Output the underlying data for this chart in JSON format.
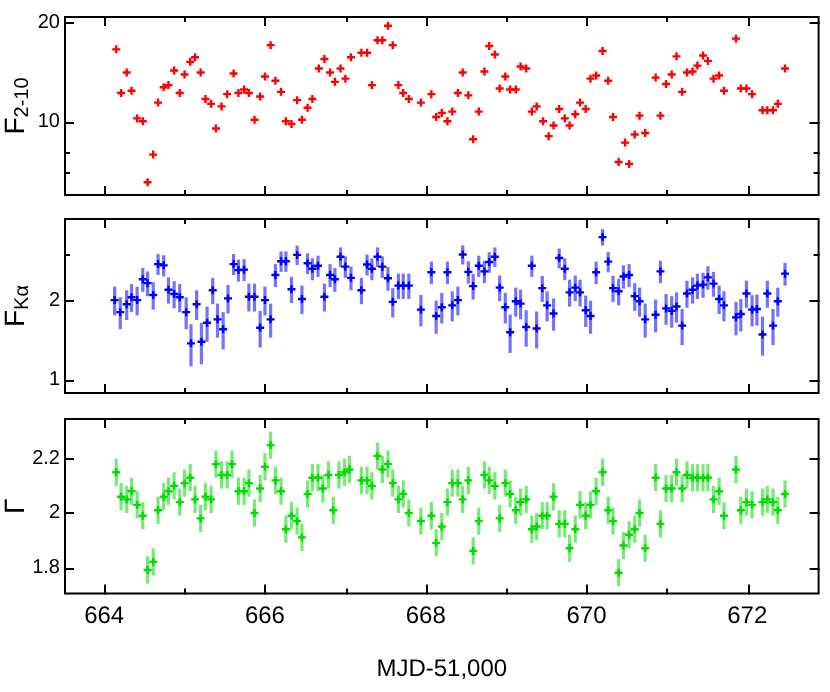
{
  "chart_data": [
    {
      "type": "scatter",
      "ylabel": "F$_{2-10}$",
      "log": true,
      "marker": "cross",
      "tick_labels": "y",
      "color": "#ff0000",
      "xlim": [
        663.5,
        672.9
      ],
      "xticks": [
        664,
        {
          "value": 665,
          "label": null
        },
        666,
        {
          "value": 667,
          "label": null
        },
        668,
        {
          "value": 669,
          "label": null
        },
        670,
        {
          "value": 671,
          "label": null
        },
        672
      ],
      "ylim": [
        5.9,
        21
      ],
      "yticks": [
        {
          "value": 7,
          "label": null
        },
        {
          "value": 8,
          "label": null
        },
        10,
        20
      ],
      "x": [
        664.15,
        664.21,
        664.28,
        664.34,
        664.41,
        664.48,
        664.54,
        664.61,
        664.67,
        664.74,
        664.8,
        664.87,
        664.94,
        665.0,
        665.07,
        665.13,
        665.2,
        665.26,
        665.33,
        665.39,
        665.46,
        665.53,
        665.61,
        665.67,
        665.74,
        665.8,
        665.87,
        665.94,
        666.0,
        666.07,
        666.13,
        666.2,
        666.26,
        666.33,
        666.4,
        666.46,
        666.53,
        666.59,
        666.67,
        666.74,
        666.81,
        666.87,
        666.94,
        667.0,
        667.07,
        667.2,
        667.27,
        667.33,
        667.4,
        667.46,
        667.53,
        667.59,
        667.66,
        667.72,
        667.79,
        667.94,
        668.07,
        668.13,
        668.2,
        668.27,
        668.33,
        668.4,
        668.46,
        668.53,
        668.59,
        668.66,
        668.73,
        668.79,
        668.86,
        668.92,
        668.99,
        669.05,
        669.12,
        669.18,
        669.25,
        669.32,
        669.38,
        669.46,
        669.53,
        669.59,
        669.66,
        669.73,
        669.79,
        669.86,
        669.92,
        669.99,
        670.05,
        670.12,
        670.2,
        670.27,
        670.33,
        670.4,
        670.48,
        670.53,
        670.6,
        670.66,
        670.73,
        670.86,
        670.92,
        670.99,
        671.06,
        671.12,
        671.19,
        671.25,
        671.32,
        671.38,
        671.45,
        671.51,
        671.58,
        671.65,
        671.71,
        671.86,
        671.92,
        671.99,
        672.06,
        672.19,
        672.25,
        672.32,
        672.38,
        672.47
      ],
      "values": [
        16.6,
        12.2,
        14.1,
        12.4,
        10.2,
        10.0,
        6.5,
        7.9,
        11.4,
        12.7,
        12.9,
        14.3,
        12.2,
        13.9,
        15.2,
        15.7,
        14.1,
        11.7,
        11.3,
        9.5,
        11.1,
        12.1,
        14.0,
        12.2,
        12.5,
        12.2,
        10.1,
        11.9,
        13.7,
        17.1,
        13.3,
        12.3,
        10.0,
        9.8,
        11.6,
        10.1,
        11.0,
        11.7,
        14.5,
        15.5,
        14.1,
        13.2,
        14.5,
        13.5,
        15.7,
        16.2,
        16.2,
        12.9,
        17.7,
        17.7,
        19.6,
        17.1,
        12.9,
        12.2,
        11.7,
        11.4,
        12.1,
        10.3,
        10.6,
        10.0,
        10.7,
        12.2,
        14.1,
        12.0,
        8.8,
        10.7,
        14.2,
        17.0,
        16.0,
        12.6,
        13.7,
        12.5,
        12.5,
        14.7,
        14.5,
        10.7,
        11.1,
        10.0,
        9.0,
        9.7,
        10.9,
        10.2,
        9.7,
        10.5,
        11.4,
        10.9,
        13.5,
        13.8,
        16.4,
        13.3,
        10.3,
        7.5,
        8.6,
        7.4,
        9.1,
        10.4,
        9.2,
        13.6,
        10.4,
        13.0,
        13.9,
        15.8,
        12.3,
        14.1,
        14.2,
        14.8,
        15.9,
        15.3,
        13.5,
        13.8,
        12.4,
        17.9,
        12.6,
        12.6,
        12.1,
        10.8,
        10.8,
        10.8,
        11.3,
        14.5
      ]
    },
    {
      "type": "scatter",
      "ylabel": "F$_{Kα}$",
      "log": true,
      "marker": "cross",
      "tick_labels": "y",
      "color": "#0000ff",
      "xlim": [
        663.5,
        672.9
      ],
      "xticks": [
        664,
        {
          "value": 665,
          "label": null
        },
        666,
        {
          "value": 667,
          "label": null
        },
        668,
        {
          "value": 669,
          "label": null
        },
        670,
        {
          "value": 671,
          "label": null
        },
        672
      ],
      "ylim": [
        0.88,
        4.1
      ],
      "yticks": [
        1,
        2,
        {
          "value": 3,
          "label": null
        }
      ],
      "x": [
        664.13,
        664.2,
        664.28,
        664.34,
        664.41,
        664.48,
        664.54,
        664.61,
        664.67,
        664.74,
        664.8,
        664.87,
        664.94,
        665.02,
        665.08,
        665.15,
        665.21,
        665.28,
        665.35,
        665.41,
        665.48,
        665.54,
        665.61,
        665.67,
        665.74,
        665.8,
        665.87,
        665.94,
        666.0,
        666.07,
        666.13,
        666.2,
        666.26,
        666.33,
        666.4,
        666.46,
        666.53,
        666.59,
        666.66,
        666.74,
        666.81,
        666.87,
        666.94,
        667.0,
        667.07,
        667.2,
        667.27,
        667.33,
        667.4,
        667.46,
        667.53,
        667.59,
        667.66,
        667.72,
        667.79,
        667.94,
        668.07,
        668.13,
        668.2,
        668.27,
        668.33,
        668.4,
        668.46,
        668.53,
        668.59,
        668.66,
        668.73,
        668.79,
        668.86,
        668.92,
        668.99,
        669.05,
        669.12,
        669.18,
        669.25,
        669.32,
        669.38,
        669.45,
        669.51,
        669.59,
        669.66,
        669.73,
        669.79,
        669.86,
        669.92,
        669.99,
        670.05,
        670.12,
        670.2,
        670.27,
        670.33,
        670.4,
        670.46,
        670.53,
        670.6,
        670.66,
        670.73,
        670.86,
        670.92,
        670.99,
        671.06,
        671.12,
        671.19,
        671.25,
        671.32,
        671.38,
        671.45,
        671.51,
        671.58,
        671.65,
        671.71,
        671.86,
        671.92,
        671.99,
        672.06,
        672.12,
        672.19,
        672.25,
        672.32,
        672.38,
        672.47
      ],
      "values": [
        2.0,
        1.8,
        1.93,
        2.05,
        2.0,
        2.4,
        2.32,
        2.09,
        2.74,
        2.71,
        2.19,
        2.11,
        2.05,
        1.8,
        1.37,
        1.93,
        1.39,
        1.64,
        2.18,
        1.69,
        1.55,
        2.03,
        2.74,
        2.6,
        2.61,
        2.06,
        2.06,
        1.57,
        2.0,
        1.69,
        2.49,
        2.81,
        2.81,
        2.2,
        2.97,
        2.02,
        2.76,
        2.63,
        2.7,
        2.06,
        2.49,
        2.4,
        2.92,
        2.68,
        2.43,
        2.18,
        2.73,
        2.63,
        2.92,
        2.68,
        2.42,
        1.97,
        2.27,
        2.27,
        2.27,
        1.84,
        2.55,
        1.74,
        1.88,
        2.55,
        1.91,
        2.0,
        2.98,
        2.56,
        2.26,
        2.7,
        2.57,
        2.79,
        2.92,
        2.23,
        1.88,
        1.51,
        1.98,
        1.94,
        1.58,
        2.7,
        1.56,
        2.22,
        1.91,
        1.78,
        2.89,
        2.63,
        2.14,
        2.23,
        2.14,
        1.83,
        1.74,
        2.55,
        3.47,
        2.8,
        2.22,
        2.16,
        2.46,
        2.49,
        2.07,
        1.98,
        1.69,
        1.76,
        2.57,
        1.86,
        1.82,
        1.89,
        1.6,
        2.12,
        2.19,
        2.27,
        2.29,
        2.44,
        2.31,
        2.02,
        1.91,
        1.72,
        1.77,
        2.12,
        1.84,
        1.85,
        1.48,
        2.12,
        1.6,
        1.98,
        2.52
      ],
      "errors": [
        0.25,
        0.25,
        0.25,
        0.25,
        0.25,
        0.25,
        0.25,
        0.25,
        0.25,
        0.25,
        0.25,
        0.25,
        0.25,
        0.25,
        0.25,
        0.25,
        0.25,
        0.25,
        0.25,
        0.25,
        0.25,
        0.25,
        0.25,
        0.25,
        0.25,
        0.25,
        0.25,
        0.25,
        0.25,
        0.25,
        0.25,
        0.25,
        0.25,
        0.25,
        0.25,
        0.25,
        0.25,
        0.25,
        0.25,
        0.25,
        0.25,
        0.25,
        0.25,
        0.25,
        0.25,
        0.25,
        0.25,
        0.25,
        0.25,
        0.25,
        0.25,
        0.25,
        0.25,
        0.25,
        0.25,
        0.25,
        0.25,
        0.25,
        0.25,
        0.25,
        0.25,
        0.25,
        0.25,
        0.25,
        0.25,
        0.25,
        0.25,
        0.25,
        0.25,
        0.25,
        0.25,
        0.25,
        0.25,
        0.25,
        0.25,
        0.25,
        0.25,
        0.25,
        0.25,
        0.25,
        0.25,
        0.25,
        0.25,
        0.25,
        0.25,
        0.25,
        0.25,
        0.25,
        0.25,
        0.25,
        0.25,
        0.25,
        0.25,
        0.25,
        0.25,
        0.25,
        0.25,
        0.25,
        0.25,
        0.25,
        0.25,
        0.25,
        0.25,
        0.25,
        0.25,
        0.25,
        0.25,
        0.25,
        0.25,
        0.25,
        0.25,
        0.25,
        0.25,
        0.25,
        0.25,
        0.25,
        0.25,
        0.25,
        0.25,
        0.25,
        0.25
      ]
    },
    {
      "type": "scatter",
      "ylabel": "Γ",
      "xlabel": "MJD-51,000",
      "marker": "cross",
      "color": "#00dd00",
      "xlim": [
        663.5,
        672.9
      ],
      "xticks": [
        664,
        {
          "value": 665,
          "label": null
        },
        666,
        {
          "value": 667,
          "label": null
        },
        668,
        {
          "value": 669,
          "label": null
        },
        670,
        {
          "value": 671,
          "label": null
        },
        672
      ],
      "ylim": [
        1.7,
        2.35
      ],
      "yticks": [
        1.8,
        2,
        2.2
      ],
      "x": [
        664.15,
        664.21,
        664.28,
        664.34,
        664.41,
        664.48,
        664.54,
        664.61,
        664.67,
        664.74,
        664.8,
        664.87,
        664.94,
        665.0,
        665.07,
        665.13,
        665.2,
        665.26,
        665.33,
        665.39,
        665.46,
        665.53,
        665.59,
        665.67,
        665.74,
        665.8,
        665.87,
        665.94,
        666.0,
        666.07,
        666.13,
        666.2,
        666.26,
        666.33,
        666.4,
        666.46,
        666.53,
        666.59,
        666.66,
        666.72,
        666.79,
        666.85,
        666.92,
        666.99,
        667.05,
        667.2,
        667.27,
        667.33,
        667.4,
        667.46,
        667.53,
        667.59,
        667.66,
        667.72,
        667.79,
        667.94,
        668.07,
        668.13,
        668.2,
        668.27,
        668.33,
        668.4,
        668.46,
        668.53,
        668.59,
        668.66,
        668.73,
        668.79,
        668.86,
        668.92,
        668.99,
        669.05,
        669.12,
        669.18,
        669.25,
        669.32,
        669.38,
        669.45,
        669.51,
        669.59,
        669.66,
        669.73,
        669.79,
        669.86,
        669.92,
        669.99,
        670.05,
        670.12,
        670.2,
        670.27,
        670.33,
        670.4,
        670.46,
        670.53,
        670.6,
        670.66,
        670.73,
        670.86,
        670.92,
        670.99,
        671.06,
        671.12,
        671.19,
        671.25,
        671.32,
        671.38,
        671.45,
        671.51,
        671.58,
        671.65,
        671.71,
        671.86,
        671.92,
        671.99,
        672.06,
        672.19,
        672.25,
        672.32,
        672.38,
        672.47
      ],
      "values": [
        2.15,
        2.06,
        2.05,
        2.08,
        2.03,
        1.99,
        1.79,
        1.82,
        2.01,
        2.06,
        2.08,
        2.1,
        2.04,
        2.11,
        2.13,
        2.05,
        1.98,
        2.06,
        2.05,
        2.18,
        2.14,
        2.14,
        2.18,
        2.08,
        2.08,
        2.11,
        2.0,
        2.09,
        2.17,
        2.25,
        2.12,
        2.08,
        1.94,
        1.99,
        1.97,
        1.91,
        2.07,
        2.13,
        2.13,
        2.09,
        2.14,
        2.01,
        2.14,
        2.15,
        2.16,
        2.12,
        2.12,
        2.1,
        2.21,
        2.16,
        2.18,
        2.11,
        2.05,
        2.07,
        2.0,
        1.97,
        1.99,
        1.89,
        1.95,
        2.04,
        2.11,
        2.11,
        2.05,
        2.12,
        1.86,
        1.97,
        2.14,
        2.12,
        2.1,
        1.98,
        2.11,
        2.07,
        2.01,
        2.04,
        2.05,
        1.94,
        1.95,
        1.99,
        1.99,
        2.06,
        1.96,
        1.96,
        1.87,
        1.94,
        2.03,
        1.99,
        2.03,
        2.08,
        2.15,
        2.01,
        1.97,
        1.78,
        1.88,
        1.92,
        1.94,
        2.0,
        1.87,
        2.13,
        1.96,
        2.09,
        2.09,
        2.15,
        2.09,
        2.14,
        2.13,
        2.13,
        2.13,
        2.13,
        2.05,
        2.08,
        1.99,
        2.16,
        2.01,
        2.04,
        2.03,
        2.04,
        2.05,
        2.04,
        2.01,
        2.07
      ],
      "errors": [
        0.05,
        0.05,
        0.05,
        0.05,
        0.05,
        0.05,
        0.05,
        0.05,
        0.05,
        0.05,
        0.05,
        0.05,
        0.05,
        0.05,
        0.05,
        0.05,
        0.05,
        0.05,
        0.05,
        0.05,
        0.05,
        0.05,
        0.05,
        0.05,
        0.05,
        0.05,
        0.05,
        0.05,
        0.05,
        0.05,
        0.05,
        0.05,
        0.05,
        0.05,
        0.05,
        0.05,
        0.05,
        0.05,
        0.05,
        0.05,
        0.05,
        0.05,
        0.05,
        0.05,
        0.05,
        0.05,
        0.05,
        0.05,
        0.05,
        0.05,
        0.05,
        0.05,
        0.05,
        0.05,
        0.05,
        0.05,
        0.05,
        0.05,
        0.05,
        0.05,
        0.05,
        0.05,
        0.05,
        0.05,
        0.05,
        0.05,
        0.05,
        0.05,
        0.05,
        0.05,
        0.05,
        0.05,
        0.05,
        0.05,
        0.05,
        0.05,
        0.05,
        0.05,
        0.05,
        0.05,
        0.05,
        0.05,
        0.05,
        0.05,
        0.05,
        0.05,
        0.05,
        0.05,
        0.05,
        0.05,
        0.05,
        0.05,
        0.05,
        0.05,
        0.05,
        0.05,
        0.05,
        0.05,
        0.05,
        0.05,
        0.05,
        0.05,
        0.05,
        0.05,
        0.05,
        0.05,
        0.05,
        0.05,
        0.05,
        0.05,
        0.05,
        0.05,
        0.05,
        0.05,
        0.05,
        0.05,
        0.05,
        0.05,
        0.05,
        0.05
      ]
    }
  ]
}
